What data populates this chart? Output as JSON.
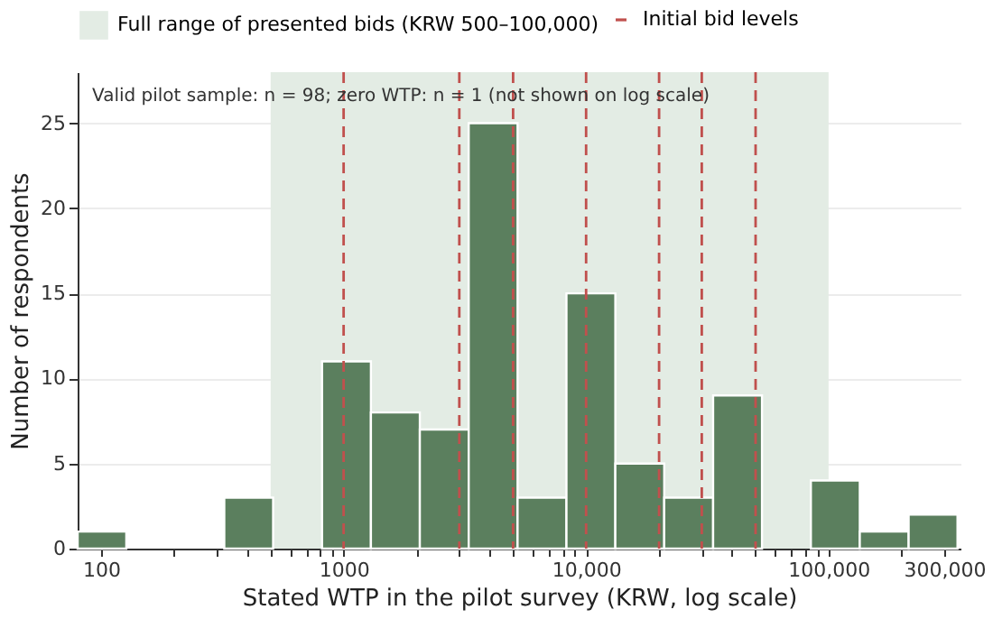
{
  "chart_data": {
    "type": "histogram",
    "xlabel": "Stated WTP in the pilot survey (KRW, log scale)",
    "ylabel": "Number of respondents",
    "bins": [
      80,
      127,
      202,
      322,
      512,
      815,
      1296,
      2062,
      3280,
      5217,
      8299,
      13200,
      21000,
      33410,
      53140,
      84530,
      134500,
      213900,
      340200
    ],
    "values": [
      1,
      0,
      0,
      3,
      0,
      11,
      8,
      7,
      25,
      3,
      15,
      5,
      3,
      9,
      0,
      4,
      1,
      2
    ],
    "color": "#5b7f5e",
    "log": "x",
    "xlim": [
      80,
      350000
    ],
    "ylim": [
      0,
      28
    ],
    "xticks": [
      {
        "value": 100,
        "label": "100"
      },
      {
        "value": 200,
        "label": null
      },
      {
        "value": 300,
        "label": null
      },
      {
        "value": 400,
        "label": null
      },
      {
        "value": 500,
        "label": null
      },
      {
        "value": 600,
        "label": null
      },
      {
        "value": 700,
        "label": null
      },
      {
        "value": 800,
        "label": null
      },
      {
        "value": 900,
        "label": null
      },
      {
        "value": 1000,
        "label": "1000"
      },
      {
        "value": 2000,
        "label": null
      },
      {
        "value": 3000,
        "label": null
      },
      {
        "value": 4000,
        "label": null
      },
      {
        "value": 5000,
        "label": null
      },
      {
        "value": 6000,
        "label": null
      },
      {
        "value": 7000,
        "label": null
      },
      {
        "value": 8000,
        "label": null
      },
      {
        "value": 9000,
        "label": null
      },
      {
        "value": 10000,
        "label": "10,000"
      },
      {
        "value": 20000,
        "label": null
      },
      {
        "value": 30000,
        "label": null
      },
      {
        "value": 40000,
        "label": null
      },
      {
        "value": 50000,
        "label": null
      },
      {
        "value": 60000,
        "label": null
      },
      {
        "value": 70000,
        "label": null
      },
      {
        "value": 80000,
        "label": null
      },
      {
        "value": 90000,
        "label": null
      },
      {
        "value": 100000,
        "label": "100,000"
      },
      {
        "value": 200000,
        "label": null
      },
      {
        "value": 300000,
        "label": "300,000"
      }
    ],
    "yticks": [
      0,
      5,
      10,
      15,
      20,
      25
    ],
    "grid": "y",
    "legend": "top",
    "ref_lines": [
      {
        "axis": "x",
        "value": 1000,
        "label": "Initial bid levels",
        "color": "#c0504d",
        "line_style": "dashed"
      },
      {
        "axis": "x",
        "value": 3000,
        "color": "#c0504d",
        "line_style": "dashed"
      },
      {
        "axis": "x",
        "value": 5000,
        "color": "#c0504d",
        "line_style": "dashed"
      },
      {
        "axis": "x",
        "value": 10000,
        "color": "#c0504d",
        "line_style": "dashed"
      },
      {
        "axis": "x",
        "value": 20000,
        "color": "#c0504d",
        "line_style": "dashed"
      },
      {
        "axis": "x",
        "value": 30000,
        "color": "#c0504d",
        "line_style": "dashed"
      },
      {
        "axis": "x",
        "value": 50000,
        "color": "#c0504d",
        "line_style": "dashed"
      }
    ],
    "bands": [
      {
        "axis": "x",
        "from": 500,
        "to": 100000,
        "label": "Full range of presented bids (KRW 500–100,000)",
        "color": "#e3ece4"
      }
    ],
    "annotations": [
      "Valid pilot sample: n = 98; zero WTP: n = 1 (not shown on log scale)"
    ]
  }
}
